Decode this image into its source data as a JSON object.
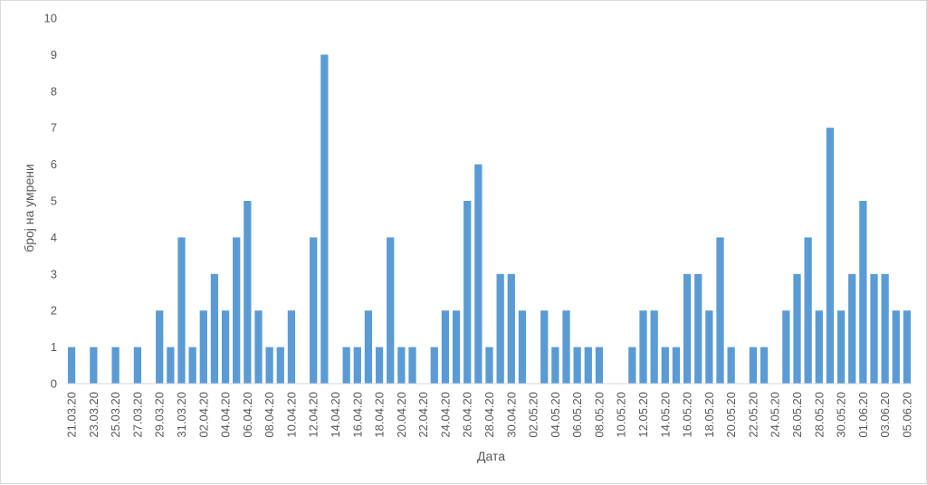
{
  "chart_data": {
    "type": "bar",
    "xlabel": "Дата",
    "ylabel": "број на умрени",
    "ylim": [
      0,
      10
    ],
    "yticks": [
      0,
      1,
      2,
      3,
      4,
      5,
      6,
      7,
      8,
      9,
      10
    ],
    "grid": false,
    "bar_color": "#5b9bd5",
    "categories": [
      "21.03.20",
      "22.03.20",
      "23.03.20",
      "24.03.20",
      "25.03.20",
      "26.03.20",
      "27.03.20",
      "28.03.20",
      "29.03.20",
      "30.03.20",
      "31.03.20",
      "01.04.20",
      "02.04.20",
      "03.04.20",
      "04.04.20",
      "05.04.20",
      "06.04.20",
      "07.04.20",
      "08.04.20",
      "09.04.20",
      "10.04.20",
      "11.04.20",
      "12.04.20",
      "13.04.20",
      "14.04.20",
      "15.04.20",
      "16.04.20",
      "17.04.20",
      "18.04.20",
      "19.04.20",
      "20.04.20",
      "21.04.20",
      "22.04.20",
      "23.04.20",
      "24.04.20",
      "25.04.20",
      "26.04.20",
      "27.04.20",
      "28.04.20",
      "29.04.20",
      "30.04.20",
      "01.05.20",
      "02.05.20",
      "03.05.20",
      "04.05.20",
      "05.05.20",
      "06.05.20",
      "07.05.20",
      "08.05.20",
      "09.05.20",
      "10.05.20",
      "11.05.20",
      "12.05.20",
      "13.05.20",
      "14.05.20",
      "15.05.20",
      "16.05.20",
      "17.05.20",
      "18.05.20",
      "19.05.20",
      "20.05.20",
      "21.05.20",
      "22.05.20",
      "23.05.20",
      "24.05.20",
      "25.05.20",
      "26.05.20",
      "27.05.20",
      "28.05.20",
      "29.05.20",
      "30.05.20",
      "31.05.20",
      "01.06.20",
      "02.06.20",
      "03.06.20",
      "04.06.20",
      "05.06.20"
    ],
    "tick_labels": [
      "21.03.20",
      "23.03.20",
      "25.03.20",
      "27.03.20",
      "29.03.20",
      "31.03.20",
      "02.04.20",
      "04.04.20",
      "06.04.20",
      "08.04.20",
      "10.04.20",
      "12.04.20",
      "14.04.20",
      "16.04.20",
      "18.04.20",
      "20.04.20",
      "22.04.20",
      "24.04.20",
      "26.04.20",
      "28.04.20",
      "30.04.20",
      "02.05.20",
      "04.05.20",
      "06.05.20",
      "08.05.20",
      "10.05.20",
      "12.05.20",
      "14.05.20",
      "16.05.20",
      "18.05.20",
      "20.05.20",
      "22.05.20",
      "24.05.20",
      "26.05.20",
      "28.05.20",
      "30.05.20",
      "01.06.20",
      "03.06.20",
      "05.06.20"
    ],
    "values": [
      1,
      0,
      1,
      0,
      1,
      0,
      1,
      0,
      2,
      1,
      4,
      1,
      2,
      3,
      2,
      4,
      5,
      2,
      1,
      1,
      2,
      0,
      4,
      9,
      0,
      1,
      1,
      2,
      1,
      4,
      1,
      1,
      0,
      1,
      2,
      2,
      5,
      6,
      1,
      3,
      3,
      2,
      0,
      2,
      1,
      2,
      1,
      1,
      1,
      0,
      0,
      1,
      2,
      2,
      1,
      1,
      3,
      3,
      2,
      4,
      1,
      0,
      1,
      1,
      0,
      2,
      3,
      4,
      2,
      7,
      2,
      3,
      5,
      3,
      3,
      2,
      2
    ]
  }
}
